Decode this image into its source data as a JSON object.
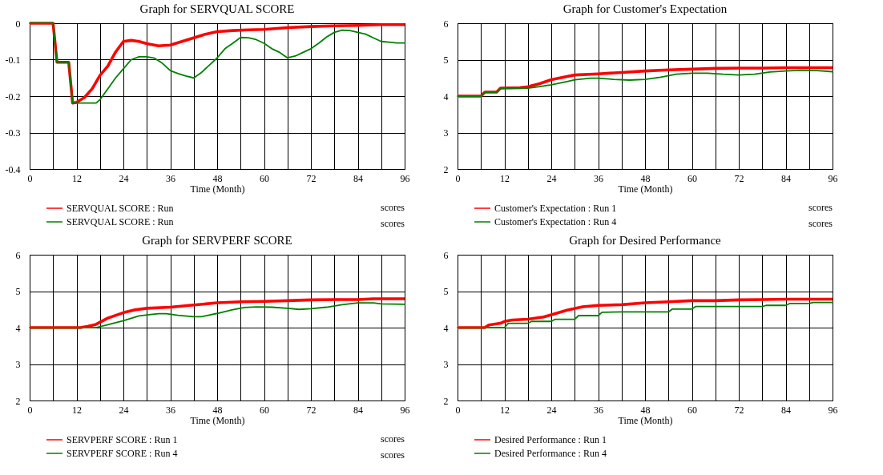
{
  "chart_data": [
    {
      "type": "line",
      "title": "Graph for SERVQUAL SCORE",
      "xlabel": "Time (Month)",
      "xlim": [
        0,
        96
      ],
      "ylim": [
        -0.4,
        0
      ],
      "grid": true,
      "legend": "bottom",
      "xticks": [
        0,
        {
          "value": 6,
          "label": null
        },
        12,
        {
          "value": 18,
          "label": null
        },
        24,
        {
          "value": 30,
          "label": null
        },
        36,
        {
          "value": 42,
          "label": null
        },
        48,
        {
          "value": 54,
          "label": null
        },
        60,
        {
          "value": 66,
          "label": null
        },
        72,
        {
          "value": 78,
          "label": null
        },
        84,
        {
          "value": 90,
          "label": null
        },
        96
      ],
      "yticks": [
        -0.4,
        -0.3,
        -0.2,
        -0.1,
        0
      ],
      "annotations": [
        "scores",
        "scores"
      ],
      "series": [
        {
          "name": "SERVQUAL SCORE : Run",
          "color": "#ff0000",
          "x": [
            0,
            6,
            7,
            10,
            11,
            12,
            14,
            16,
            18,
            20,
            22,
            24,
            26,
            28,
            30,
            33,
            36,
            39,
            42,
            45,
            48,
            52,
            56,
            60,
            66,
            72,
            78,
            84,
            90,
            96
          ],
          "values": [
            0,
            0,
            -0.107,
            -0.107,
            -0.219,
            -0.217,
            -0.204,
            -0.18,
            -0.143,
            -0.118,
            -0.079,
            -0.05,
            -0.047,
            -0.05,
            -0.056,
            -0.062,
            -0.06,
            -0.05,
            -0.04,
            -0.03,
            -0.023,
            -0.02,
            -0.018,
            -0.017,
            -0.012,
            -0.009,
            -0.007,
            -0.006,
            -0.004,
            -0.004
          ]
        },
        {
          "name": "SERVQUAL SCORE : Run",
          "color": "#008000",
          "x": [
            0,
            6,
            7,
            10,
            11,
            17,
            18,
            20,
            22,
            24,
            26,
            28,
            30,
            32,
            34,
            36,
            38,
            40,
            42,
            44,
            46,
            48,
            50,
            52,
            54,
            56,
            58,
            60,
            62,
            64,
            66,
            68,
            70,
            72,
            74,
            76,
            78,
            80,
            82,
            84,
            86,
            88,
            90,
            92,
            94,
            96
          ],
          "values": [
            0,
            0,
            -0.107,
            -0.107,
            -0.219,
            -0.219,
            -0.21,
            -0.18,
            -0.15,
            -0.125,
            -0.1,
            -0.092,
            -0.092,
            -0.096,
            -0.11,
            -0.13,
            -0.138,
            -0.145,
            -0.15,
            -0.135,
            -0.115,
            -0.095,
            -0.07,
            -0.055,
            -0.039,
            -0.04,
            -0.045,
            -0.055,
            -0.07,
            -0.08,
            -0.095,
            -0.09,
            -0.08,
            -0.07,
            -0.055,
            -0.038,
            -0.025,
            -0.019,
            -0.02,
            -0.025,
            -0.03,
            -0.04,
            -0.05,
            -0.052,
            -0.054,
            -0.054
          ]
        }
      ]
    },
    {
      "type": "line",
      "title": "Graph for Customer's Expectation",
      "xlabel": "Time (Month)",
      "xlim": [
        0,
        96
      ],
      "ylim": [
        2,
        6
      ],
      "grid": true,
      "legend": "bottom",
      "xticks": [
        0,
        {
          "value": 6,
          "label": null
        },
        12,
        {
          "value": 18,
          "label": null
        },
        24,
        {
          "value": 30,
          "label": null
        },
        36,
        {
          "value": 42,
          "label": null
        },
        48,
        {
          "value": 54,
          "label": null
        },
        60,
        {
          "value": 66,
          "label": null
        },
        72,
        {
          "value": 78,
          "label": null
        },
        84,
        {
          "value": 90,
          "label": null
        },
        96
      ],
      "yticks": [
        2,
        3,
        4,
        5,
        6
      ],
      "annotations": [
        "scores",
        "scores"
      ],
      "series": [
        {
          "name": "Customer's Expectation : Run 1",
          "color": "#ff0000",
          "x": [
            0,
            6,
            7,
            10,
            11,
            16,
            18,
            21,
            24,
            28,
            30,
            36,
            42,
            48,
            54,
            60,
            66,
            72,
            78,
            84,
            96
          ],
          "values": [
            4.0,
            4.0,
            4.11,
            4.11,
            4.22,
            4.23,
            4.26,
            4.34,
            4.45,
            4.54,
            4.58,
            4.61,
            4.65,
            4.69,
            4.72,
            4.74,
            4.76,
            4.77,
            4.77,
            4.78,
            4.78
          ]
        },
        {
          "name": "Customer's Expectation : Run 4",
          "color": "#008000",
          "x": [
            0,
            6,
            7,
            10,
            11,
            17,
            18,
            21,
            24,
            28,
            30,
            34,
            36,
            40,
            44,
            48,
            52,
            56,
            60,
            64,
            68,
            72,
            76,
            80,
            84,
            88,
            92,
            96
          ],
          "values": [
            4.0,
            4.0,
            4.11,
            4.11,
            4.22,
            4.22,
            4.22,
            4.26,
            4.31,
            4.4,
            4.45,
            4.49,
            4.49,
            4.46,
            4.44,
            4.46,
            4.52,
            4.6,
            4.63,
            4.63,
            4.6,
            4.58,
            4.6,
            4.66,
            4.69,
            4.71,
            4.7,
            4.67
          ]
        }
      ]
    },
    {
      "type": "line",
      "title": "Graph for SERVPERF SCORE",
      "xlabel": "Time (Month)",
      "xlim": [
        0,
        96
      ],
      "ylim": [
        2,
        6
      ],
      "grid": true,
      "legend": "bottom",
      "xticks": [
        0,
        {
          "value": 6,
          "label": null
        },
        12,
        {
          "value": 18,
          "label": null
        },
        24,
        {
          "value": 30,
          "label": null
        },
        36,
        {
          "value": 42,
          "label": null
        },
        48,
        {
          "value": 54,
          "label": null
        },
        60,
        {
          "value": 66,
          "label": null
        },
        72,
        {
          "value": 78,
          "label": null
        },
        84,
        {
          "value": 90,
          "label": null
        },
        96
      ],
      "yticks": [
        2,
        3,
        4,
        5,
        6
      ],
      "annotations": [
        "scores",
        "scores"
      ],
      "series": [
        {
          "name": "SERVPERF SCORE : Run 1",
          "color": "#ff0000",
          "x": [
            0,
            13,
            15,
            17,
            20,
            24,
            27,
            30,
            36,
            42,
            48,
            54,
            60,
            66,
            72,
            78,
            84,
            88,
            96
          ],
          "values": [
            4.0,
            4.0,
            4.04,
            4.09,
            4.26,
            4.41,
            4.49,
            4.53,
            4.56,
            4.62,
            4.68,
            4.71,
            4.72,
            4.74,
            4.76,
            4.77,
            4.77,
            4.79,
            4.79
          ]
        },
        {
          "name": "SERVPERF SCORE : Run 4",
          "color": "#008000",
          "x": [
            0,
            17,
            20,
            24,
            28,
            31,
            33,
            35,
            38,
            42,
            44,
            48,
            52,
            55,
            58,
            62,
            66,
            69,
            72,
            76,
            80,
            84,
            88,
            90,
            96
          ],
          "values": [
            4.0,
            4.0,
            4.08,
            4.19,
            4.32,
            4.36,
            4.38,
            4.38,
            4.34,
            4.3,
            4.3,
            4.39,
            4.49,
            4.55,
            4.57,
            4.56,
            4.53,
            4.5,
            4.52,
            4.56,
            4.63,
            4.68,
            4.68,
            4.65,
            4.64
          ]
        }
      ]
    },
    {
      "type": "line",
      "title": "Graph for Desired Performance",
      "xlabel": "Time (Month)",
      "xlim": [
        0,
        96
      ],
      "ylim": [
        2,
        6
      ],
      "grid": true,
      "legend": "bottom",
      "xticks": [
        0,
        {
          "value": 6,
          "label": null
        },
        12,
        {
          "value": 18,
          "label": null
        },
        24,
        {
          "value": 30,
          "label": null
        },
        36,
        {
          "value": 42,
          "label": null
        },
        48,
        {
          "value": 54,
          "label": null
        },
        60,
        {
          "value": 66,
          "label": null
        },
        72,
        {
          "value": 78,
          "label": null
        },
        84,
        {
          "value": 90,
          "label": null
        },
        96
      ],
      "yticks": [
        2,
        3,
        4,
        5,
        6
      ],
      "series": [
        {
          "name": "Desired Performance : Run 1",
          "color": "#ff0000",
          "x": [
            0,
            7,
            8,
            11,
            12,
            14,
            18,
            22,
            24,
            28,
            32,
            36,
            42,
            48,
            54,
            60,
            66,
            72,
            78,
            84,
            96
          ],
          "values": [
            4.0,
            4.0,
            4.07,
            4.12,
            4.17,
            4.21,
            4.23,
            4.29,
            4.35,
            4.48,
            4.57,
            4.61,
            4.63,
            4.68,
            4.71,
            4.74,
            4.74,
            4.76,
            4.77,
            4.78,
            4.78
          ]
        },
        {
          "name": "Desired Performance : Run 4",
          "color": "#008000",
          "x": [
            0,
            12,
            13,
            18,
            19,
            24,
            25,
            30,
            31,
            36,
            37,
            42,
            54,
            55,
            60,
            61,
            78,
            79,
            84,
            85,
            90,
            91,
            96
          ],
          "values": [
            4.0,
            4.0,
            4.12,
            4.12,
            4.17,
            4.17,
            4.23,
            4.23,
            4.33,
            4.33,
            4.42,
            4.43,
            4.43,
            4.51,
            4.51,
            4.58,
            4.58,
            4.61,
            4.61,
            4.66,
            4.66,
            4.69,
            4.69
          ]
        }
      ]
    }
  ]
}
